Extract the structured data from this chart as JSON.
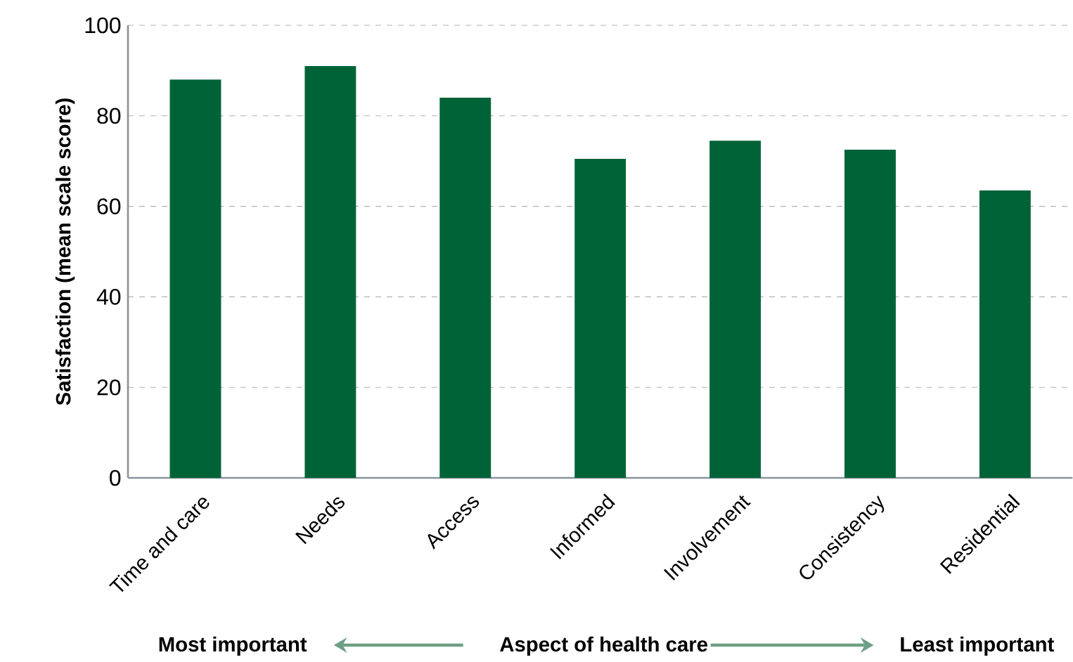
{
  "chart_data": {
    "type": "bar",
    "categories": [
      "Time and care",
      "Needs",
      "Access",
      "Informed",
      "Involvement",
      "Consistency",
      "Residential"
    ],
    "values": [
      88,
      91,
      84,
      70.5,
      74.5,
      72.5,
      63.5
    ],
    "color": "#006338",
    "ylim": [
      0,
      100
    ],
    "yticks": [
      0,
      20,
      40,
      60,
      80,
      100
    ],
    "grid": "y",
    "xlabel": "Aspect of health care",
    "ylabel": "Satisfaction (mean scale score)",
    "annotations": [
      "Most important",
      "Least important"
    ]
  }
}
